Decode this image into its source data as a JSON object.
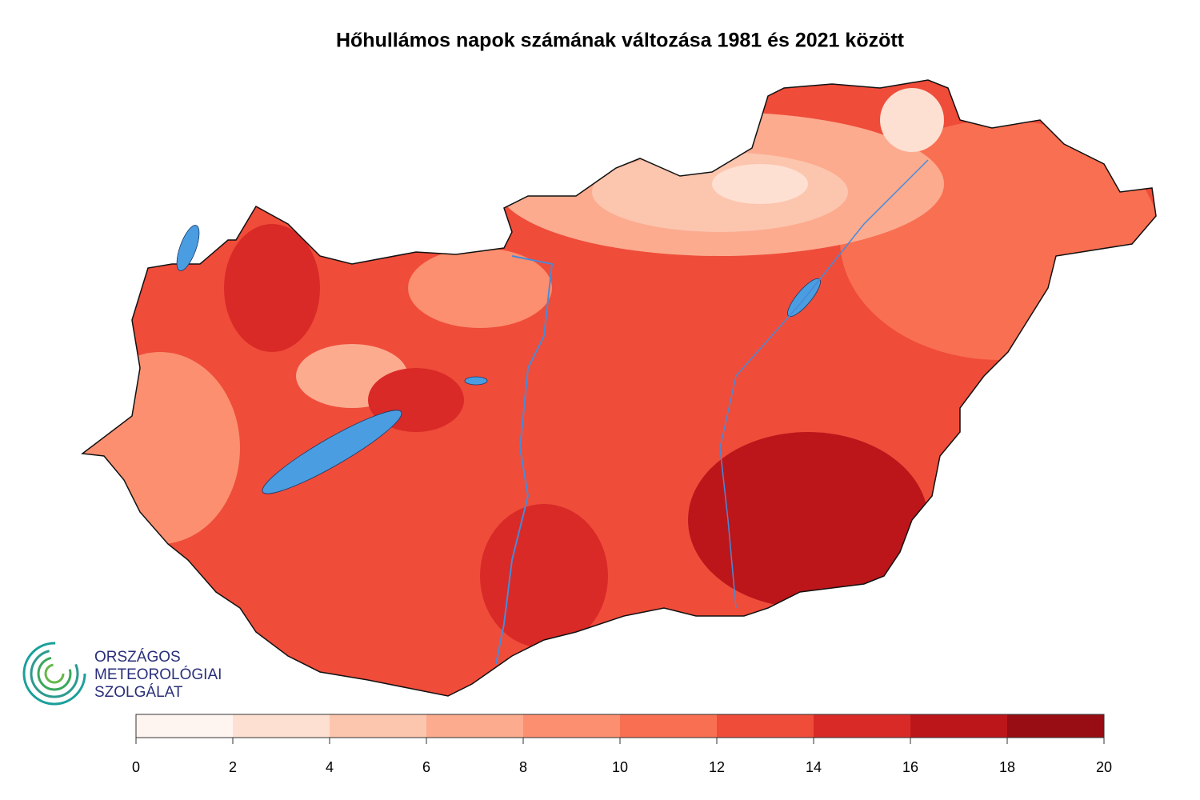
{
  "title": "Hőhullámos napok számának változása 1981 és 2021 között",
  "legend": {
    "ticks": [
      0,
      2,
      4,
      6,
      8,
      10,
      12,
      14,
      16,
      18,
      20
    ],
    "colors": [
      "#fff5f0",
      "#fee0d2",
      "#fcc5ae",
      "#fcab8f",
      "#fc8f6f",
      "#f96f51",
      "#ef4c3a",
      "#d92a27",
      "#bc161b",
      "#980c13"
    ]
  },
  "logo": {
    "lines": [
      "ORSZÁGOS",
      "METEOROLÓGIAI",
      "SZOLGÁLAT"
    ]
  }
}
